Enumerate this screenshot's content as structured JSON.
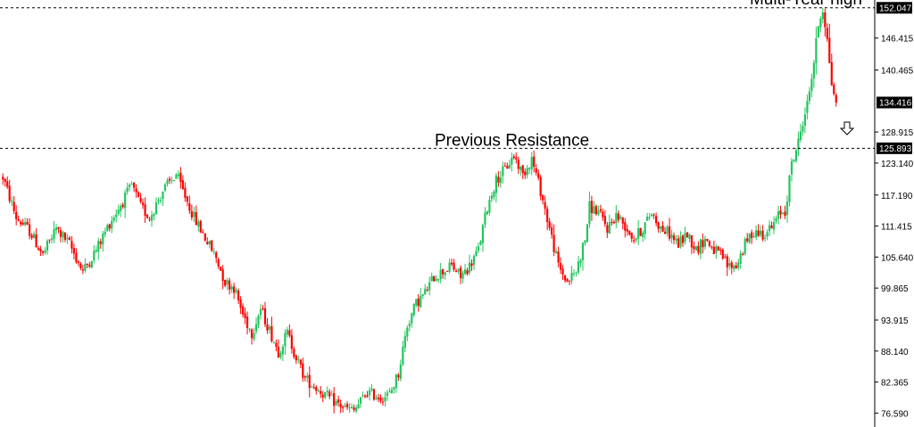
{
  "chart_data": {
    "type": "candlestick",
    "ylim": [
      74.0,
      153.5
    ],
    "y_ticks": [
      "146.415",
      "140.465",
      "128.915",
      "123.140",
      "117.190",
      "111.415",
      "105.640",
      "99.865",
      "93.915",
      "88.140",
      "82.365",
      "76.590"
    ],
    "levels": [
      {
        "label": "Multi-Year high",
        "value": 152.047,
        "tag": "152.047"
      },
      {
        "label": "Previous Resistance",
        "value": 125.893,
        "tag": "125.893"
      }
    ],
    "current_price": {
      "value": 134.416,
      "tag": "134.416"
    },
    "annotation_icon": "down-arrow-icon",
    "colors": {
      "up": "#22c55e",
      "down": "#ff0000",
      "line": "#000000",
      "tag_bg": "#000000"
    },
    "anchors": [
      [
        0,
        120.5
      ],
      [
        6,
        113
      ],
      [
        12,
        110.5
      ],
      [
        18,
        106
      ],
      [
        24,
        111
      ],
      [
        30,
        108
      ],
      [
        36,
        103
      ],
      [
        42,
        107
      ],
      [
        48,
        112
      ],
      [
        54,
        116
      ],
      [
        58,
        119
      ],
      [
        62,
        115
      ],
      [
        66,
        113
      ],
      [
        72,
        118
      ],
      [
        78,
        121
      ],
      [
        82,
        117
      ],
      [
        86,
        113
      ],
      [
        90,
        110
      ],
      [
        96,
        105.5
      ],
      [
        100,
        101
      ],
      [
        104,
        100
      ],
      [
        108,
        95
      ],
      [
        112,
        91.5
      ],
      [
        116,
        96
      ],
      [
        120,
        92
      ],
      [
        124,
        88
      ],
      [
        128,
        91.5
      ],
      [
        132,
        87
      ],
      [
        136,
        83
      ],
      [
        142,
        81
      ],
      [
        148,
        79
      ],
      [
        154,
        77.5
      ],
      [
        158,
        77
      ],
      [
        164,
        80.5
      ],
      [
        170,
        79.5
      ],
      [
        174,
        80
      ],
      [
        178,
        84
      ],
      [
        182,
        93
      ],
      [
        186,
        97
      ],
      [
        190,
        99
      ],
      [
        194,
        102
      ],
      [
        198,
        103
      ],
      [
        202,
        104
      ],
      [
        206,
        102
      ],
      [
        210,
        104
      ],
      [
        214,
        107
      ],
      [
        218,
        115
      ],
      [
        222,
        120
      ],
      [
        226,
        122
      ],
      [
        230,
        124.5
      ],
      [
        234,
        121
      ],
      [
        238,
        124
      ],
      [
        242,
        118
      ],
      [
        246,
        111
      ],
      [
        250,
        104
      ],
      [
        254,
        101
      ],
      [
        258,
        103
      ],
      [
        262,
        109
      ],
      [
        264,
        115
      ],
      [
        268,
        114
      ],
      [
        272,
        111
      ],
      [
        276,
        113.5
      ],
      [
        280,
        111.5
      ],
      [
        284,
        109
      ],
      [
        288,
        111
      ],
      [
        292,
        114
      ],
      [
        296,
        111
      ],
      [
        300,
        110
      ],
      [
        304,
        108
      ],
      [
        308,
        110
      ],
      [
        312,
        107
      ],
      [
        316,
        109
      ],
      [
        320,
        107
      ],
      [
        324,
        105.5
      ],
      [
        326,
        104
      ],
      [
        330,
        104
      ],
      [
        334,
        108
      ],
      [
        338,
        110.5
      ],
      [
        342,
        110
      ],
      [
        346,
        111
      ],
      [
        350,
        114
      ],
      [
        352,
        114
      ],
      [
        355,
        123
      ],
      [
        358,
        127
      ],
      [
        360,
        131
      ],
      [
        362,
        134
      ],
      [
        365,
        142
      ],
      [
        367,
        149
      ],
      [
        369,
        152
      ],
      [
        371,
        146
      ],
      [
        373,
        138
      ],
      [
        375,
        134.5
      ]
    ],
    "candle_count": 376
  }
}
